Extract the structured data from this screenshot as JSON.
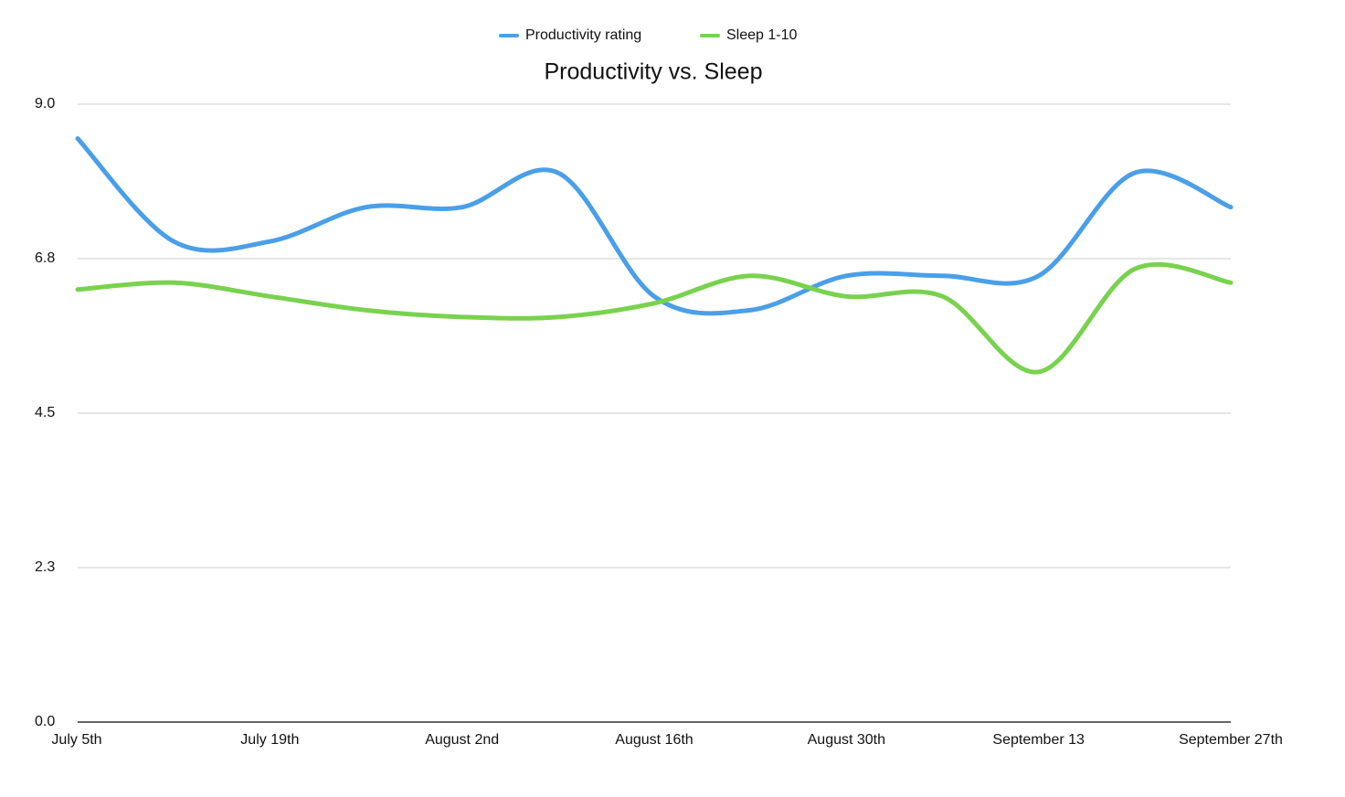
{
  "chart_data": {
    "type": "line",
    "title": "Productivity vs. Sleep",
    "categories": [
      "July 5th",
      null,
      "July 19th",
      null,
      "August 2nd",
      null,
      "August 16th",
      null,
      "August 30th",
      null,
      "September 13",
      null,
      "September 27th"
    ],
    "series": [
      {
        "name": "Productivity rating",
        "color": "#4a9fe8",
        "values": [
          8.5,
          7.0,
          7.0,
          7.5,
          7.5,
          8.0,
          6.2,
          6.0,
          6.5,
          6.5,
          6.5,
          8.0,
          7.5
        ]
      },
      {
        "name": "Sleep 1-10",
        "color": "#78d24e",
        "values": [
          6.3,
          6.4,
          6.2,
          6.0,
          5.9,
          5.9,
          6.1,
          6.5,
          6.2,
          6.2,
          5.1,
          6.6,
          6.4
        ]
      }
    ],
    "ylim": [
      0,
      9
    ],
    "yticks": [
      {
        "value": 0,
        "label": "0.0"
      },
      {
        "value": 2.25,
        "label": "2.3"
      },
      {
        "value": 4.5,
        "label": "4.5"
      },
      {
        "value": 6.75,
        "label": "6.8"
      },
      {
        "value": 9,
        "label": "9.0"
      }
    ],
    "grid": true
  }
}
